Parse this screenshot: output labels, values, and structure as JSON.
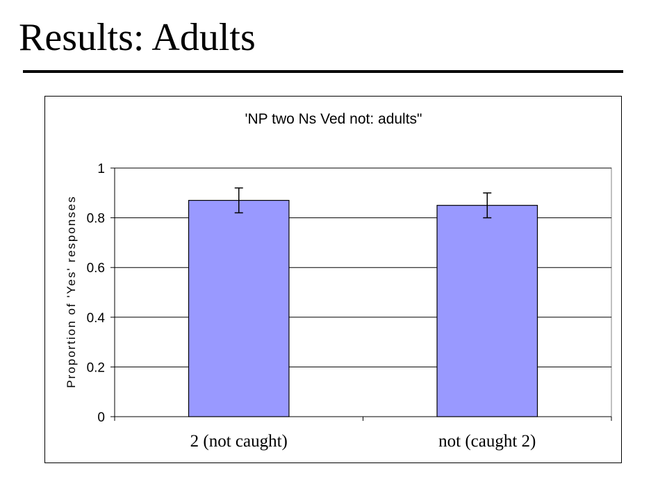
{
  "slide": {
    "title": "Results: Adults"
  },
  "chart_data": {
    "type": "bar",
    "title": "'NP two Ns Ved not: adults\"",
    "xlabel": "",
    "ylabel": "Proportion of 'Yes' responses",
    "categories": [
      "2 (not caught)",
      "not (caught 2)"
    ],
    "series": [
      {
        "values": [
          0.87,
          0.85
        ],
        "error_low": [
          0.82,
          0.8
        ],
        "error_high": [
          0.92,
          0.9
        ],
        "color": "#9999ff"
      }
    ],
    "ylim": [
      0,
      1
    ],
    "yticks": [
      "0",
      "0.2",
      "0.4",
      "0.6",
      "0.8",
      "1"
    ],
    "grid": true,
    "legend": "none"
  }
}
